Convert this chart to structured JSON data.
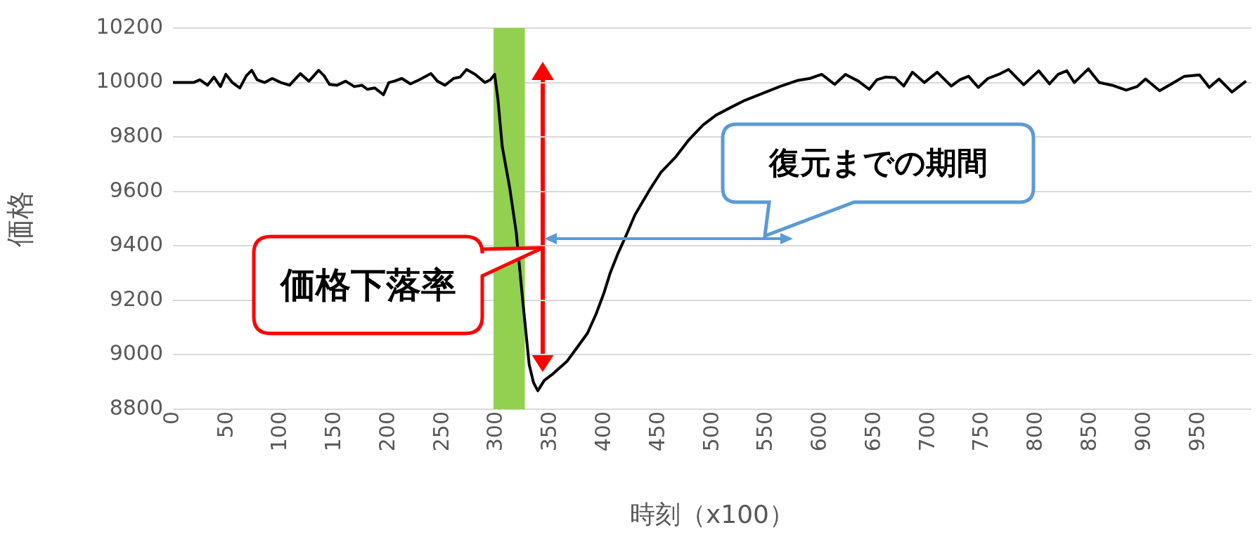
{
  "chart_data": {
    "type": "line",
    "xlabel": "時刻（x100）",
    "ylabel": "価格",
    "series": [
      {
        "color": "#000000",
        "x": [
          0,
          19,
          25,
          32,
          38,
          44,
          49,
          55,
          62,
          68,
          73,
          78,
          85,
          92,
          100,
          108,
          118,
          126,
          135,
          140,
          145,
          152,
          160,
          168,
          175,
          180,
          187,
          195,
          200,
          205,
          212,
          220,
          228,
          239,
          245,
          252,
          260,
          266,
          272,
          280,
          289,
          294,
          298,
          301,
          305,
          312,
          318,
          324,
          330,
          334,
          338,
          344,
          352,
          365,
          375,
          384,
          392,
          399,
          405,
          412,
          420,
          428,
          441,
          452,
          466,
          478,
          491,
          503,
          516,
          530,
          546,
          562,
          579,
          590,
          601,
          613,
          623,
          635,
          645,
          652,
          660,
          669,
          677,
          685,
          696,
          708,
          721,
          729,
          737,
          746,
          755,
          765,
          774,
          788,
          802,
          812,
          820,
          828,
          835,
          848,
          858,
          870,
          883,
          893,
          901,
          914,
          925,
          937,
          951,
          960,
          969,
          981,
          994
        ],
        "values": [
          10000,
          10000,
          10010,
          9990,
          10020,
          9985,
          10030,
          10000,
          9980,
          10025,
          10045,
          10010,
          10000,
          10015,
          10000,
          9990,
          10033,
          10005,
          10045,
          10025,
          9993,
          9990,
          10005,
          9985,
          9990,
          9975,
          9980,
          9955,
          10000,
          10005,
          10015,
          9995,
          10010,
          10033,
          10005,
          9990,
          10015,
          10020,
          10048,
          10030,
          10000,
          10010,
          10030,
          9940,
          9766,
          9612,
          9450,
          9200,
          8964,
          8898,
          8868,
          8906,
          8930,
          8976,
          9030,
          9079,
          9150,
          9224,
          9300,
          9370,
          9440,
          9514,
          9602,
          9670,
          9728,
          9790,
          9844,
          9880,
          9907,
          9935,
          9960,
          9985,
          10008,
          10015,
          10030,
          9993,
          10030,
          10005,
          9975,
          10010,
          10020,
          10018,
          9987,
          10038,
          10000,
          10038,
          9987,
          10010,
          10023,
          9982,
          10015,
          10030,
          10048,
          9992,
          10043,
          9995,
          10030,
          10043,
          10000,
          10050,
          10000,
          9990,
          9972,
          9985,
          10013,
          9970,
          9995,
          10023,
          10028,
          9982,
          10013,
          9965,
          10005
        ]
      }
    ],
    "xlim": [
      0,
      999
    ],
    "xticks": [
      0,
      50,
      100,
      150,
      200,
      250,
      300,
      350,
      400,
      450,
      500,
      550,
      600,
      650,
      700,
      750,
      800,
      850,
      900,
      950
    ],
    "ylim": [
      8800,
      10200
    ],
    "yticks": [
      8800,
      9000,
      9200,
      9400,
      9600,
      9800,
      10000,
      10200
    ],
    "grid": "y",
    "bands": [
      {
        "axis": "x",
        "from": 297,
        "to": 326,
        "color": "#92d050"
      }
    ],
    "annotations": [
      "復元までの期間",
      "価格下落率"
    ]
  }
}
